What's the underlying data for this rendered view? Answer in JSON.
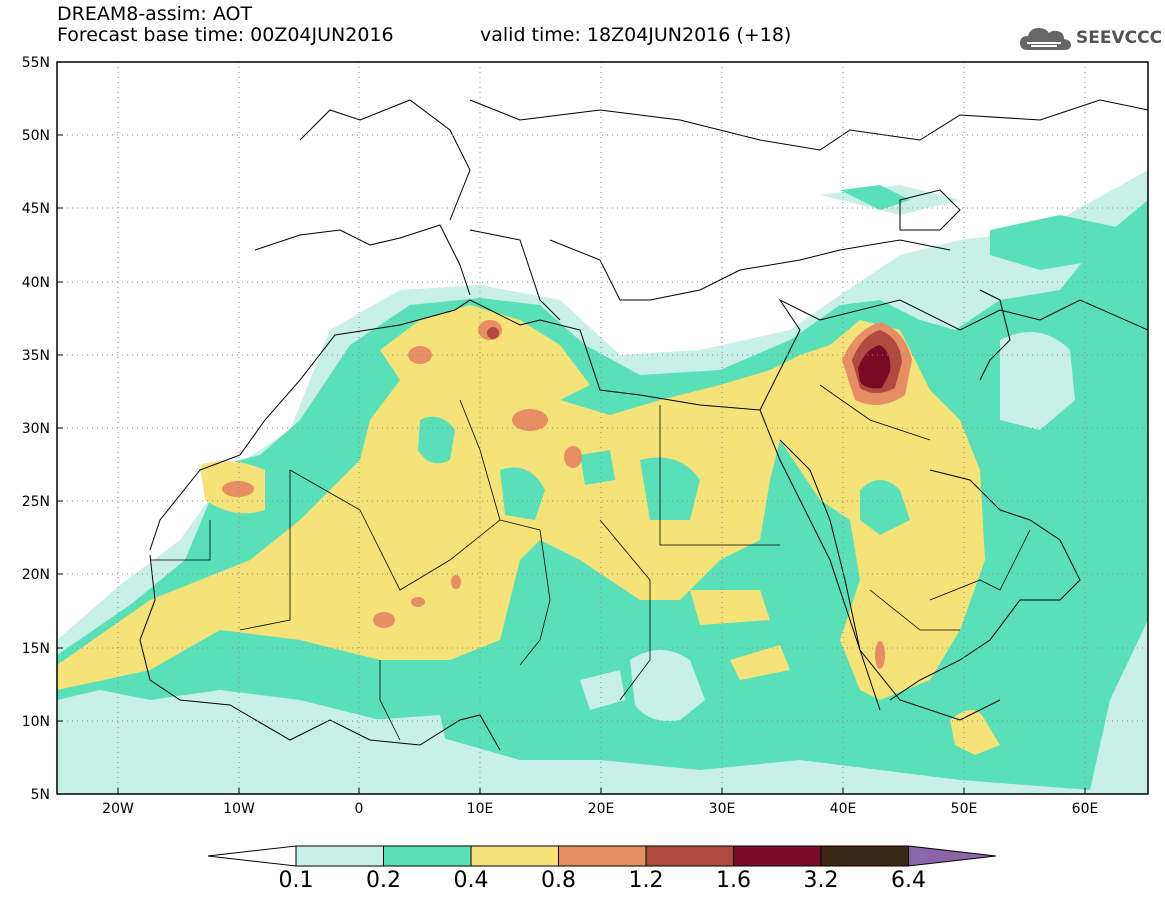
{
  "header": {
    "title_line": "DREAM8-assim: AOT",
    "base_time_line": "Forecast base time: 00Z04JUN2016",
    "valid_time_line": "valid time: 18Z04JUN2016 (+18)"
  },
  "logo": {
    "text": "SEEVCCC",
    "icon": "cloud-icon"
  },
  "map": {
    "lat_range": [
      5,
      55
    ],
    "lon_range": [
      -25,
      65
    ],
    "lat_labels": [
      "55N",
      "50N",
      "45N",
      "40N",
      "35N",
      "30N",
      "25N",
      "20N",
      "15N",
      "10N",
      "5N"
    ],
    "lon_labels": [
      "20W",
      "10W",
      "0",
      "10E",
      "20E",
      "30E",
      "40E",
      "50E",
      "60E"
    ],
    "grid": "dotted"
  },
  "colorbar": {
    "labels": [
      "0.1",
      "0.2",
      "0.4",
      "0.8",
      "1.2",
      "1.6",
      "3.2",
      "6.4"
    ],
    "colors": [
      "#ffffff",
      "#c8f0e6",
      "#5ae0b8",
      "#f5e278",
      "#e88e64",
      "#b04a3e",
      "#7a0a25",
      "#3d2818",
      "#8c64a8"
    ]
  }
}
